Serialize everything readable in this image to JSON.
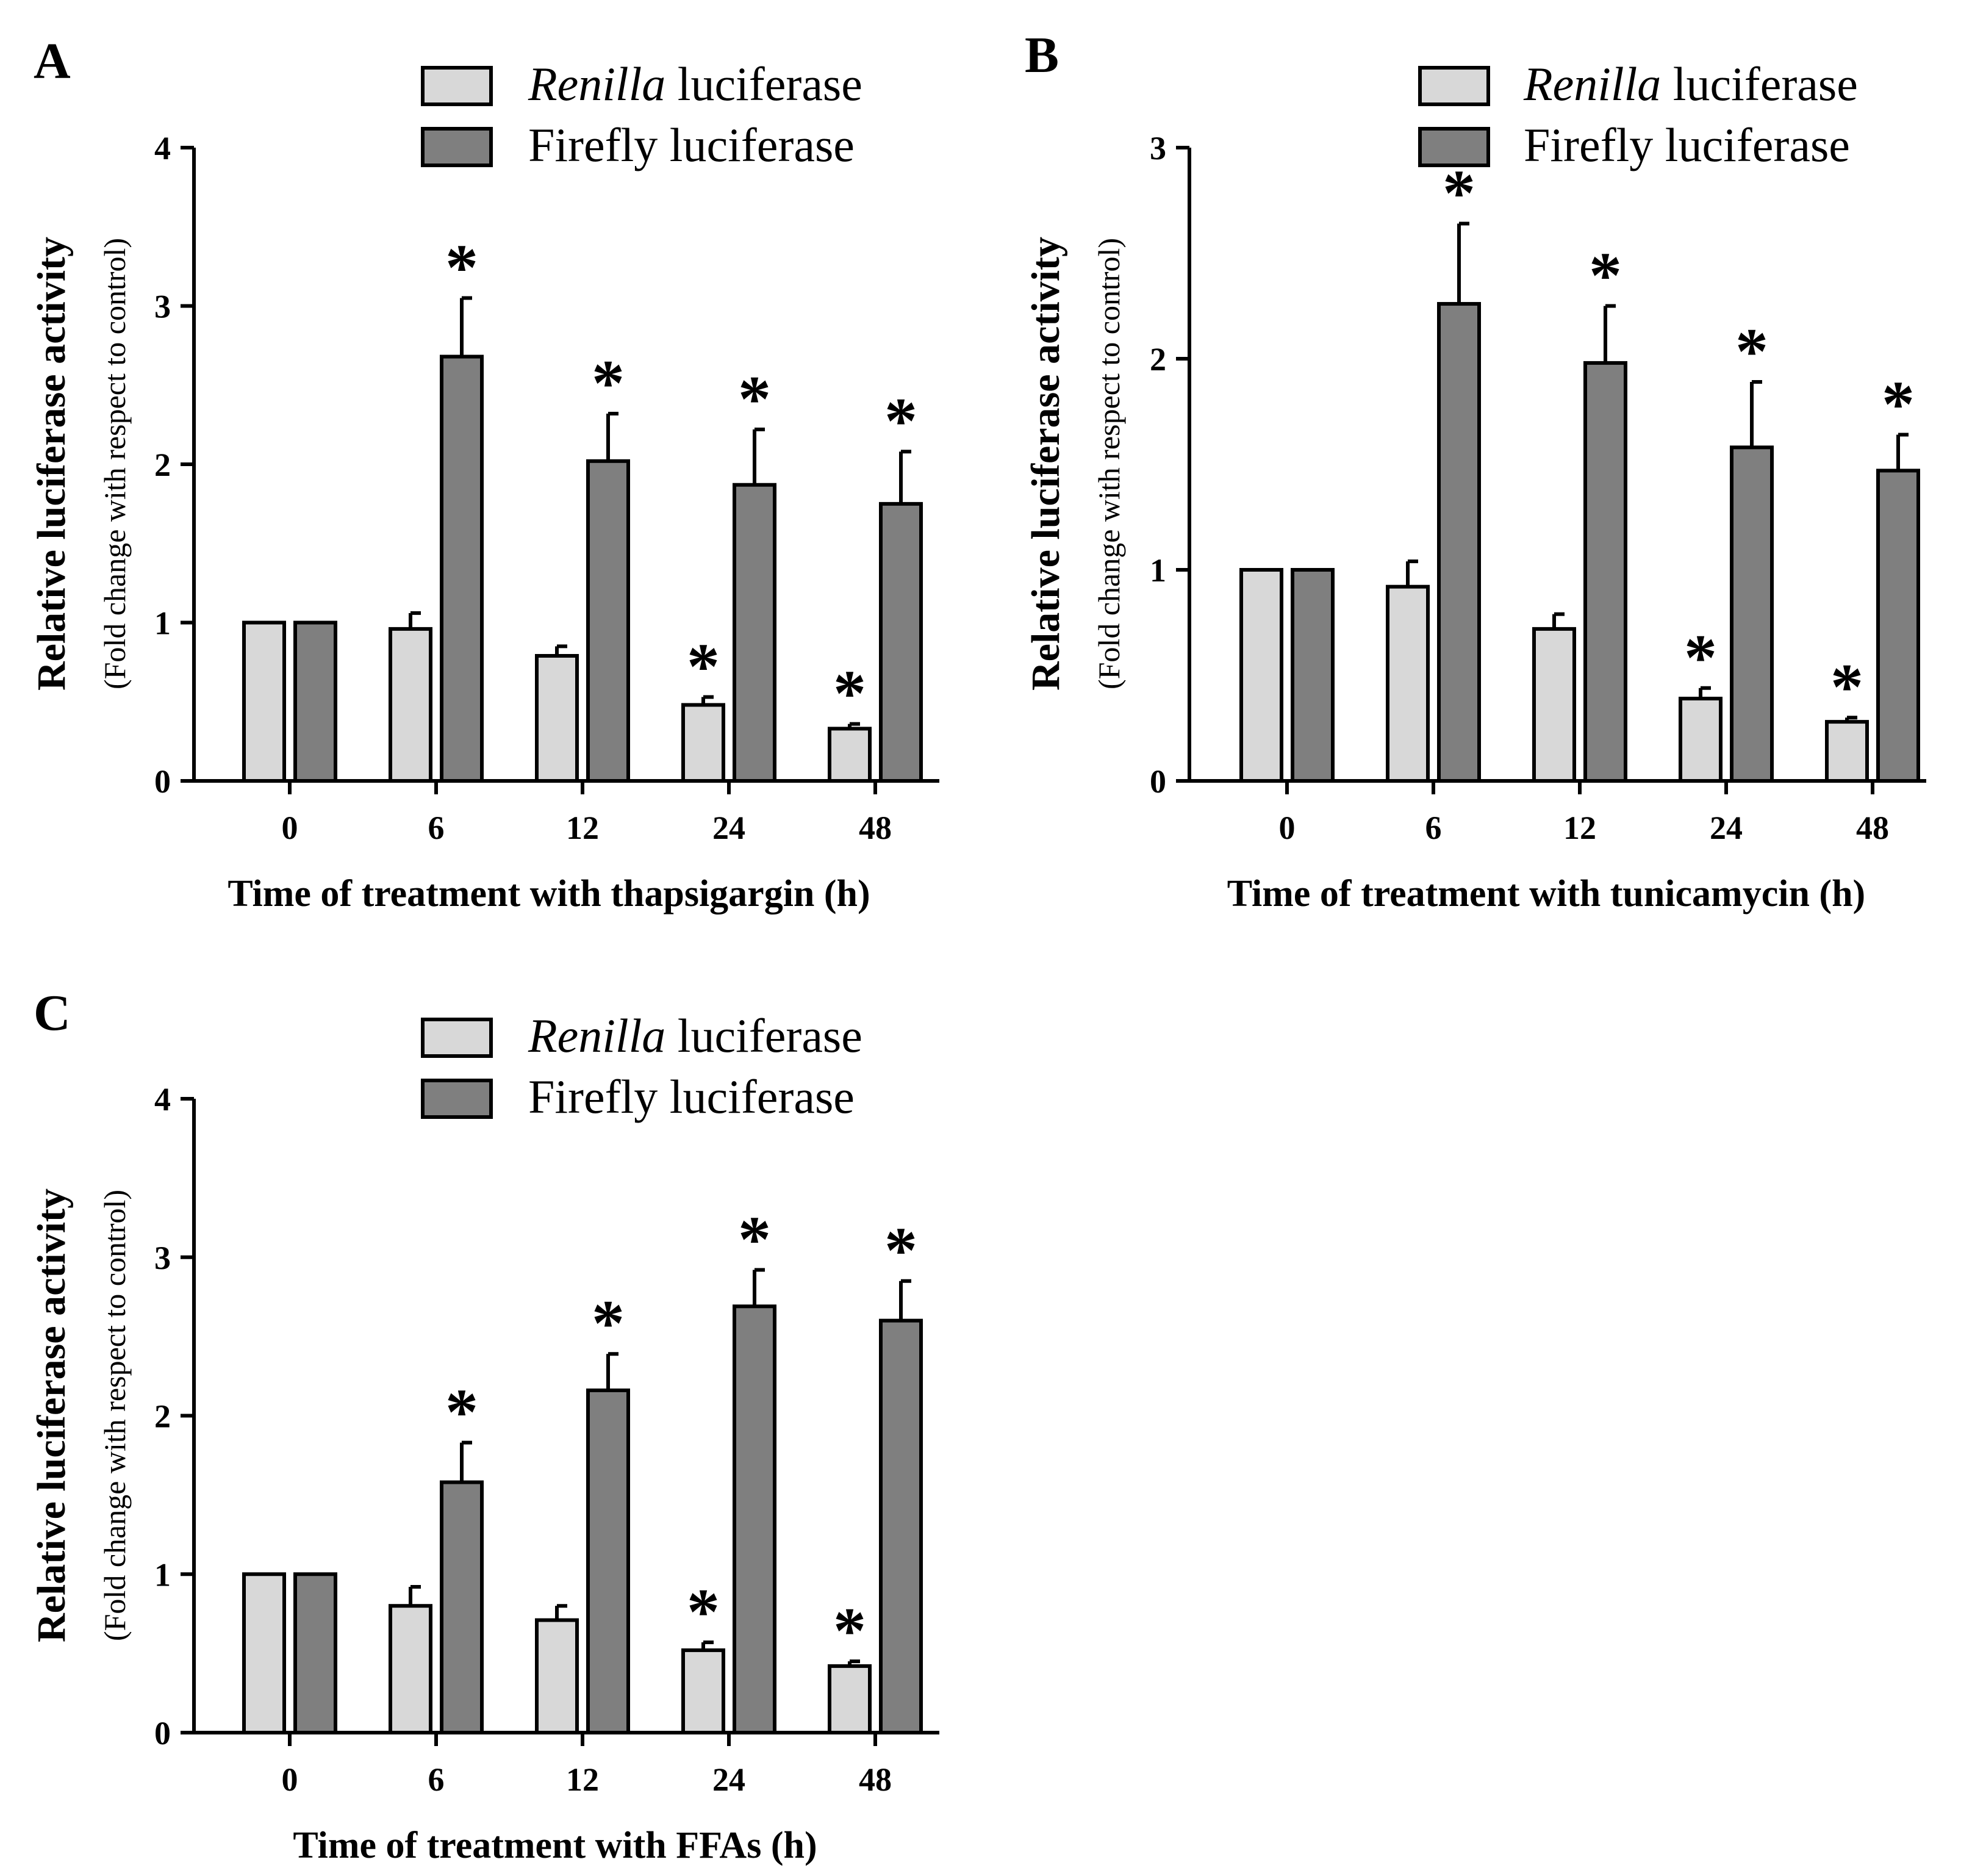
{
  "figure": {
    "legend_series": [
      {
        "italic": "Renilla",
        "plain": " luciferase"
      },
      {
        "italic": "",
        "plain": "Firefly luciferase"
      }
    ]
  },
  "colors": {
    "renilla": "#d8d8d8",
    "firefly": "#7f7f7f",
    "stroke": "#000000",
    "background": "#ffffff"
  },
  "chart_data": [
    {
      "panel": "A",
      "type": "bar",
      "categories": [
        "0",
        "6",
        "12",
        "24",
        "48"
      ],
      "xlabel": "Time of treatment with thapsigargin (h)",
      "ylabel": "Relative luciferase activity",
      "ylabel_sub": "(Fold change with respect to control)",
      "ylim": [
        0,
        4
      ],
      "yticks": [
        0,
        1,
        2,
        3,
        4
      ],
      "series": [
        {
          "name": "Renilla luciferase",
          "values": [
            1.0,
            0.96,
            0.79,
            0.48,
            0.33
          ],
          "errors": [
            0,
            0.1,
            0.06,
            0.05,
            0.03
          ],
          "significant": [
            false,
            false,
            false,
            true,
            true
          ]
        },
        {
          "name": "Firefly luciferase",
          "values": [
            1.0,
            2.68,
            2.02,
            1.87,
            1.75
          ],
          "errors": [
            0,
            0.37,
            0.3,
            0.35,
            0.33
          ],
          "significant": [
            false,
            true,
            true,
            true,
            true
          ]
        }
      ],
      "significance_marker": "*"
    },
    {
      "panel": "B",
      "type": "bar",
      "categories": [
        "0",
        "6",
        "12",
        "24",
        "48"
      ],
      "xlabel": "Time of treatment with tunicamycin (h)",
      "ylabel": "Relative luciferase activity",
      "ylabel_sub": "(Fold change with respect to control)",
      "ylim": [
        0,
        3
      ],
      "yticks": [
        0,
        1,
        2,
        3
      ],
      "series": [
        {
          "name": "Renilla luciferase",
          "values": [
            1.0,
            0.92,
            0.72,
            0.39,
            0.28
          ],
          "errors": [
            0,
            0.12,
            0.07,
            0.05,
            0.02
          ],
          "significant": [
            false,
            false,
            false,
            true,
            true
          ]
        },
        {
          "name": "Firefly luciferase",
          "values": [
            1.0,
            2.26,
            1.98,
            1.58,
            1.47
          ],
          "errors": [
            0,
            0.38,
            0.27,
            0.31,
            0.17
          ],
          "significant": [
            false,
            true,
            true,
            true,
            true
          ]
        }
      ],
      "significance_marker": "*"
    },
    {
      "panel": "C",
      "type": "bar",
      "categories": [
        "0",
        "6",
        "12",
        "24",
        "48"
      ],
      "xlabel": "Time of treatment with FFAs (h)",
      "ylabel": "Relative luciferase activity",
      "ylabel_sub": "(Fold change with respect to control)",
      "ylim": [
        0,
        4
      ],
      "yticks": [
        0,
        1,
        2,
        3,
        4
      ],
      "series": [
        {
          "name": "Renilla luciferase",
          "values": [
            1.0,
            0.8,
            0.71,
            0.52,
            0.42
          ],
          "errors": [
            0,
            0.12,
            0.09,
            0.05,
            0.03
          ],
          "significant": [
            false,
            false,
            false,
            true,
            true
          ]
        },
        {
          "name": "Firefly luciferase",
          "values": [
            1.0,
            1.58,
            2.16,
            2.69,
            2.6
          ],
          "errors": [
            0,
            0.25,
            0.23,
            0.23,
            0.25
          ],
          "significant": [
            false,
            true,
            true,
            true,
            true
          ]
        }
      ],
      "significance_marker": "*"
    }
  ]
}
